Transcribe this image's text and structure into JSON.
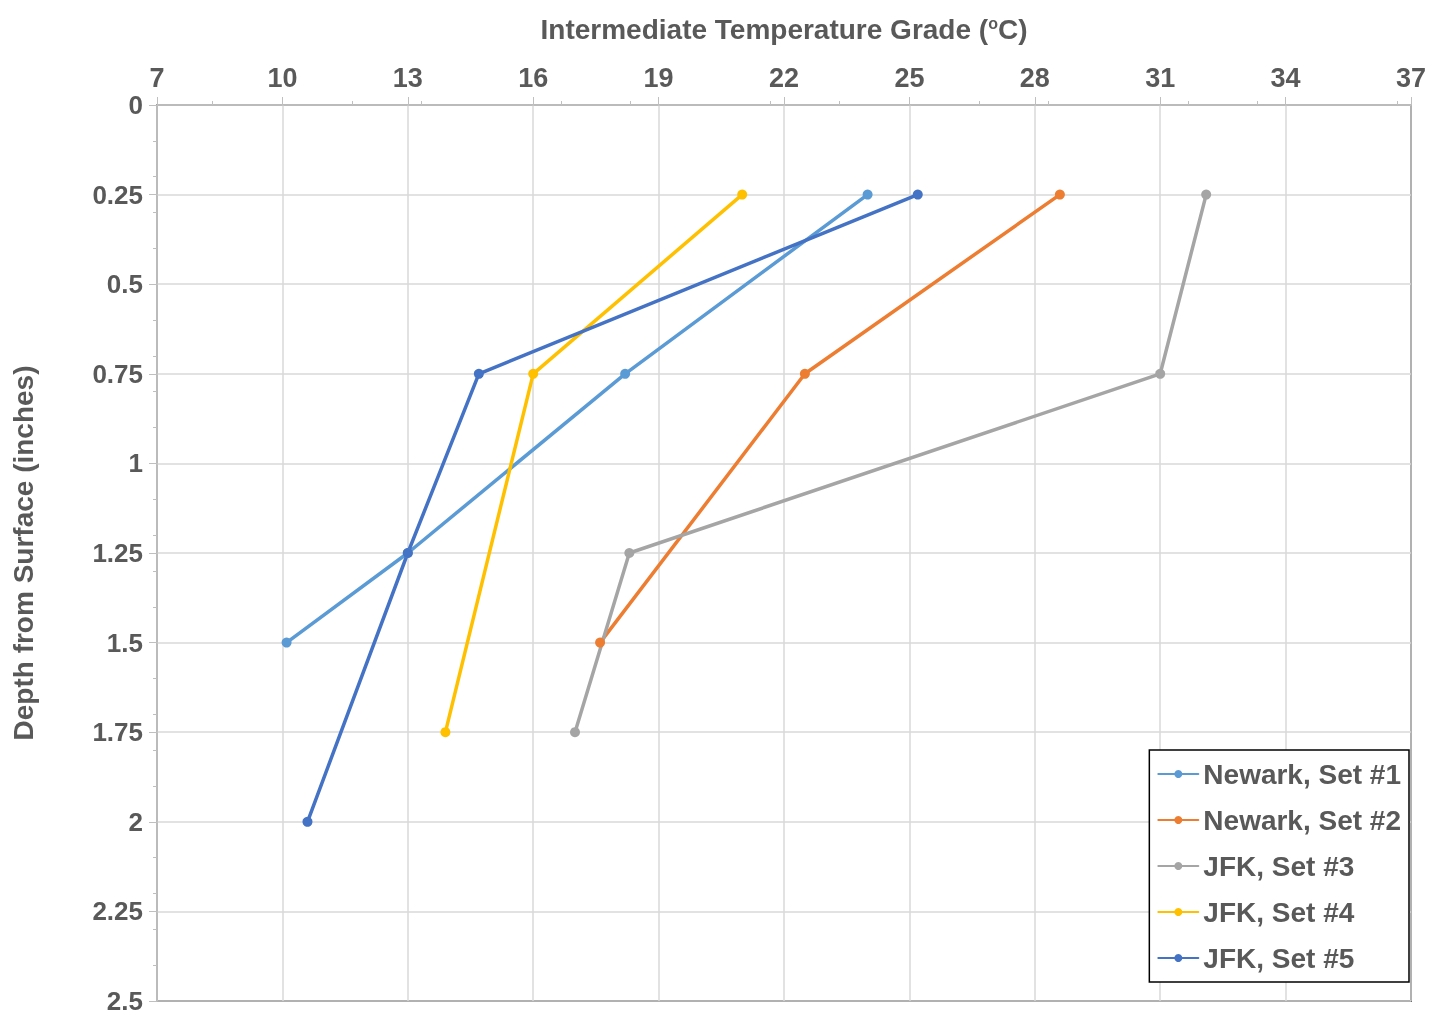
{
  "chart_data": {
    "type": "line",
    "xlabel": "Intermediate Temperature Grade ($^{o}$C)",
    "ylabel": "Depth from Surface (inches)",
    "xlim": [
      7,
      37
    ],
    "xticks": [
      7,
      10,
      13,
      16,
      19,
      22,
      25,
      28,
      31,
      34,
      37
    ],
    "ylim": [
      2.5,
      0
    ],
    "yticks": [
      0,
      0.25,
      0.5,
      0.75,
      1,
      1.25,
      1.5,
      1.75,
      2,
      2.25,
      2.5
    ],
    "grid": true,
    "legend": "bottom right",
    "marker": "circle",
    "line_style": "solid",
    "series": [
      {
        "name": "Newark, Set #1",
        "color": "#5b9bd5",
        "x": [
          24.0,
          18.2,
          13.0,
          10.1
        ],
        "values": [
          0.25,
          0.75,
          1.25,
          1.5
        ]
      },
      {
        "name": "Newark, Set #2",
        "color": "#ed7d31",
        "x": [
          28.6,
          22.5,
          17.6
        ],
        "values": [
          0.25,
          0.75,
          1.5
        ]
      },
      {
        "name": "JFK, Set #3",
        "color": "#a5a5a5",
        "x": [
          32.1,
          31.0,
          18.3,
          17.0
        ],
        "values": [
          0.25,
          0.75,
          1.25,
          1.75
        ]
      },
      {
        "name": "JFK, Set #4",
        "color": "#ffc000",
        "x": [
          21.0,
          16.0,
          13.9
        ],
        "values": [
          0.25,
          0.75,
          1.75
        ]
      },
      {
        "name": "JFK, Set #5",
        "color": "#4472c4",
        "x": [
          25.2,
          14.7,
          13.0,
          10.6
        ],
        "values": [
          0.25,
          0.75,
          1.25,
          2.0
        ]
      }
    ]
  }
}
